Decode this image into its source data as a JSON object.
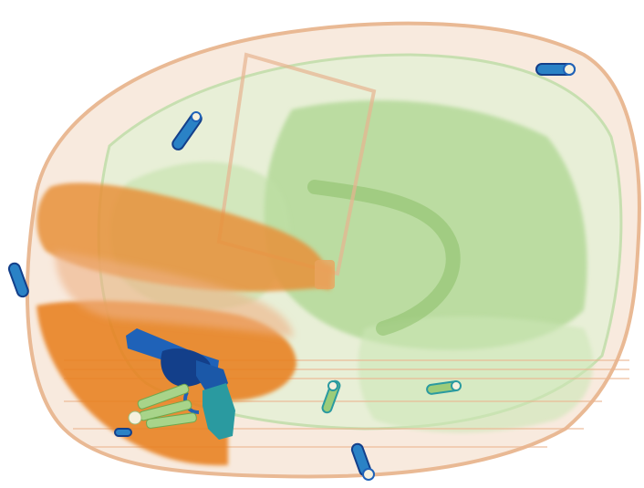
{
  "image": {
    "kind": "x-ray baggage scan",
    "background_color": "#ffffff",
    "colors": {
      "organic_light": "#f2c8a8",
      "organic_dense": "#e88a2c",
      "mixed_green": "#9ccc7a",
      "mixed_green_light": "#cfe6bd",
      "metal_blue": "#1f62b8",
      "metal_dark": "#133f8a",
      "metal_teal": "#2a9aa0",
      "zipper_cap": "#f6f1de"
    },
    "objects": [
      {
        "name": "suitcase",
        "material": "mixed"
      },
      {
        "name": "plastic-bottle",
        "material": "organic"
      },
      {
        "name": "plastic-bottle",
        "material": "organic"
      },
      {
        "name": "revolver",
        "material": "metal"
      },
      {
        "name": "zipper-pull",
        "material": "metal"
      },
      {
        "name": "zipper-pull",
        "material": "metal"
      },
      {
        "name": "zipper-pull",
        "material": "metal"
      },
      {
        "name": "zipper-pull",
        "material": "metal"
      },
      {
        "name": "zipper-pull",
        "material": "metal"
      },
      {
        "name": "zipper-pull",
        "material": "metal"
      },
      {
        "name": "zipper-pull",
        "material": "metal"
      }
    ]
  }
}
